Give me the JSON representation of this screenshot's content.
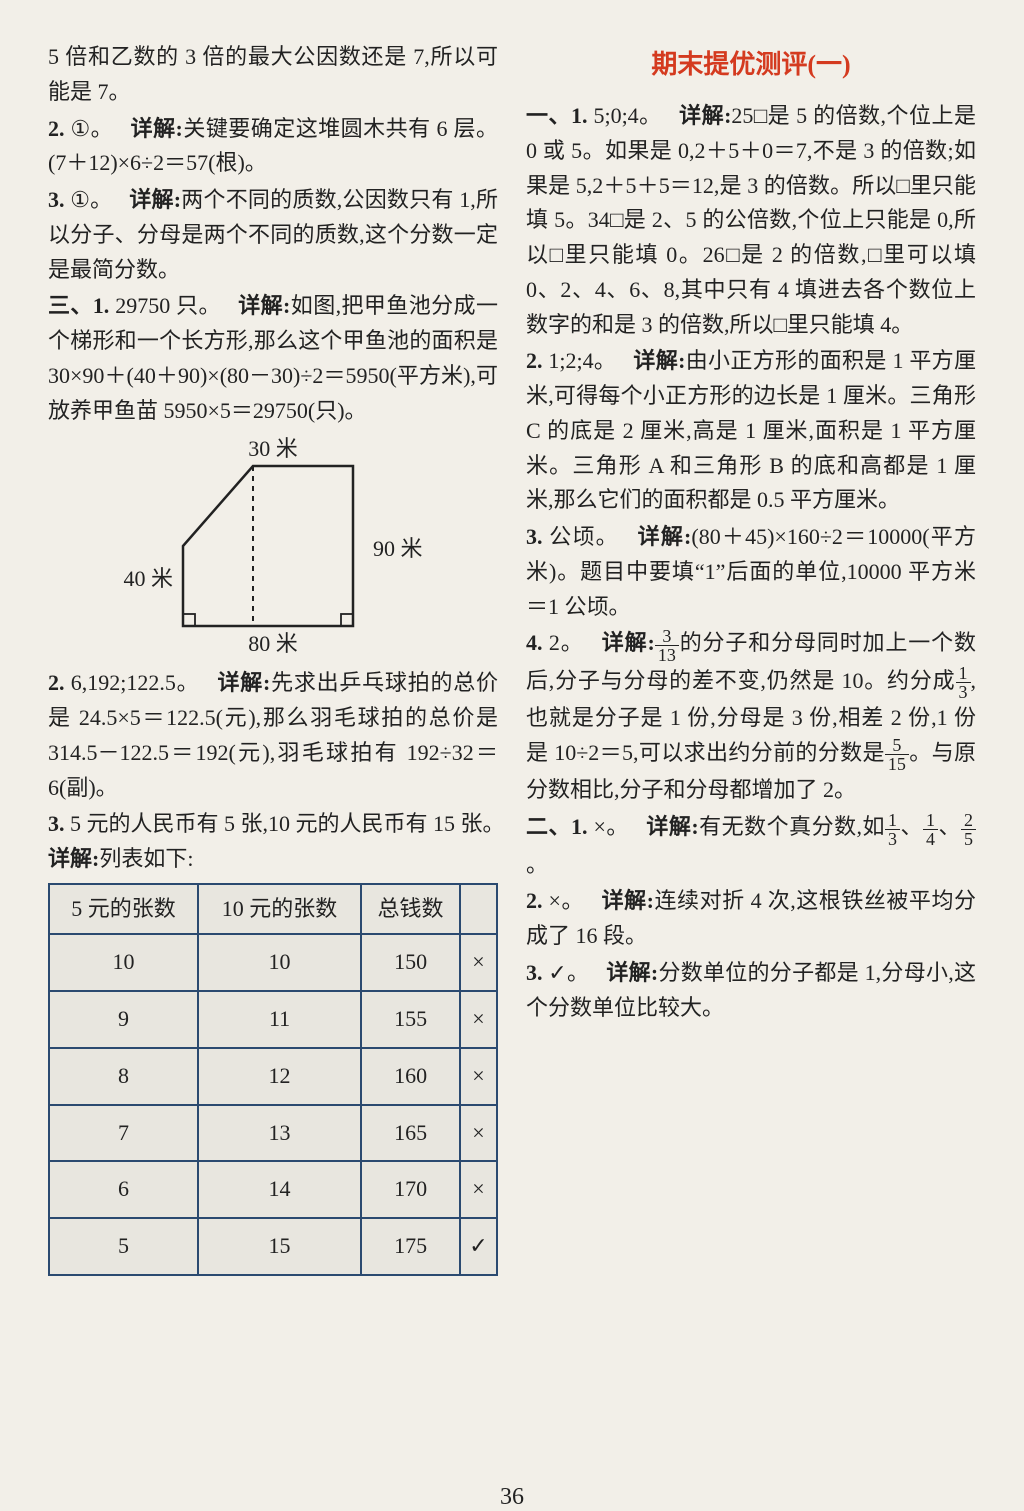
{
  "left": {
    "p1": "5 倍和乙数的 3 倍的最大公因数还是 7,所以可能是 7。",
    "p2_a": "2.",
    "p2_b": "①。",
    "p2_c": "详解:",
    "p2_d": "关键要确定这堆圆木共有 6 层。(7＋12)×6÷2＝57(根)。",
    "p3_a": "3.",
    "p3_b": "①。",
    "p3_c": "详解:",
    "p3_d": "两个不同的质数,公因数只有 1,所以分子、分母是两个不同的质数,这个分数一定是最简分数。",
    "p4_a": "三、1.",
    "p4_b": "29750 只。",
    "p4_c": "详解:",
    "p4_d": "如图,把甲鱼池分成一个梯形和一个长方形,那么这个甲鱼池的面积是 30×90＋(40＋90)×(80－30)÷2＝5950(平方米),可放养甲鱼苗 5950×5＝29750(只)。",
    "shape": {
      "top_label": "30 米",
      "right_label": "90 米",
      "left_label": "40 米",
      "bottom_label": "80 米",
      "stroke": "#222",
      "dash": "4 4"
    },
    "p5_a": "2.",
    "p5_b": "6,192;122.5。",
    "p5_c": "详解:",
    "p5_d": "先求出乒乓球拍的总价是 24.5×5＝122.5(元),那么羽毛球拍的总价是 314.5－122.5＝192(元),羽毛球拍有 192÷32＝6(副)。",
    "p6_a": "3.",
    "p6_b": "5 元的人民币有 5 张,10 元的人民币有 15 张。",
    "p6_c": "详解:",
    "p6_d": "列表如下:",
    "table": {
      "columns": [
        "5 元的张数",
        "10 元的张数",
        "总钱数",
        ""
      ],
      "rows": [
        [
          "10",
          "10",
          "150",
          "×"
        ],
        [
          "9",
          "11",
          "155",
          "×"
        ],
        [
          "8",
          "12",
          "160",
          "×"
        ],
        [
          "7",
          "13",
          "165",
          "×"
        ],
        [
          "6",
          "14",
          "170",
          "×"
        ],
        [
          "5",
          "15",
          "175",
          "✓"
        ]
      ],
      "border_color": "#2b4a70"
    }
  },
  "right": {
    "heading": "期末提优测评(一)",
    "p1_a": "一、1.",
    "p1_b": "5;0;4。",
    "p1_c": "详解:",
    "p1_d": "25□是 5 的倍数,个位上是 0 或 5。如果是 0,2＋5＋0＝7,不是 3 的倍数;如果是 5,2＋5＋5＝12,是 3 的倍数。所以□里只能填 5。34□是 2、5 的公倍数,个位上只能是 0,所以□里只能填 0。26□是 2 的倍数,□里可以填 0、2、4、6、8,其中只有 4 填进去各个数位上数字的和是 3 的倍数,所以□里只能填 4。",
    "p2_a": "2.",
    "p2_b": "1;2;4。",
    "p2_c": "详解:",
    "p2_d": "由小正方形的面积是 1 平方厘米,可得每个小正方形的边长是 1 厘米。三角形 C 的底是 2 厘米,高是 1 厘米,面积是 1 平方厘米。三角形 A 和三角形 B 的底和高都是 1 厘米,那么它们的面积都是 0.5 平方厘米。",
    "p3_a": "3.",
    "p3_b": "公顷。",
    "p3_c": "详解:",
    "p3_d": "(80＋45)×160÷2＝10000(平方米)。题目中要填“1”后面的单位,10000 平方米＝1 公顷。",
    "p4_a": "4.",
    "p4_b": "2。",
    "p4_c": "详解:",
    "p4_d1": "的分子和分母同时加上一个数后,分子与分母的差不变,仍然是 10。约分成",
    "p4_d2": ",也就是分子是 1 份,分母是 3 份,相差 2 份,1 份是 10÷2＝5,可以求出约分前的分数是",
    "p4_d3": "。与原分数相比,分子和分母都增加了 2。",
    "frac_3_13": {
      "n": "3",
      "d": "13"
    },
    "frac_1_3": {
      "n": "1",
      "d": "3"
    },
    "frac_5_15": {
      "n": "5",
      "d": "15"
    },
    "p5_a": "二、1.",
    "p5_b": "×。",
    "p5_c": "详解:",
    "p5_d1": "有无数个真分数,如",
    "p5_d2": "、",
    "p5_d3": "、",
    "p5_d4": "。",
    "frac_1_3b": {
      "n": "1",
      "d": "3"
    },
    "frac_1_4": {
      "n": "1",
      "d": "4"
    },
    "frac_2_5": {
      "n": "2",
      "d": "5"
    },
    "p6_a": "2.",
    "p6_b": "×。",
    "p6_c": "详解:",
    "p6_d": "连续对折 4 次,这根铁丝被平均分成了 16 段。",
    "p7_a": "3.",
    "p7_b": "✓。",
    "p7_c": "详解:",
    "p7_d": "分数单位的分子都是 1,分母小,这个分数单位比较大。"
  },
  "page_num": "36"
}
